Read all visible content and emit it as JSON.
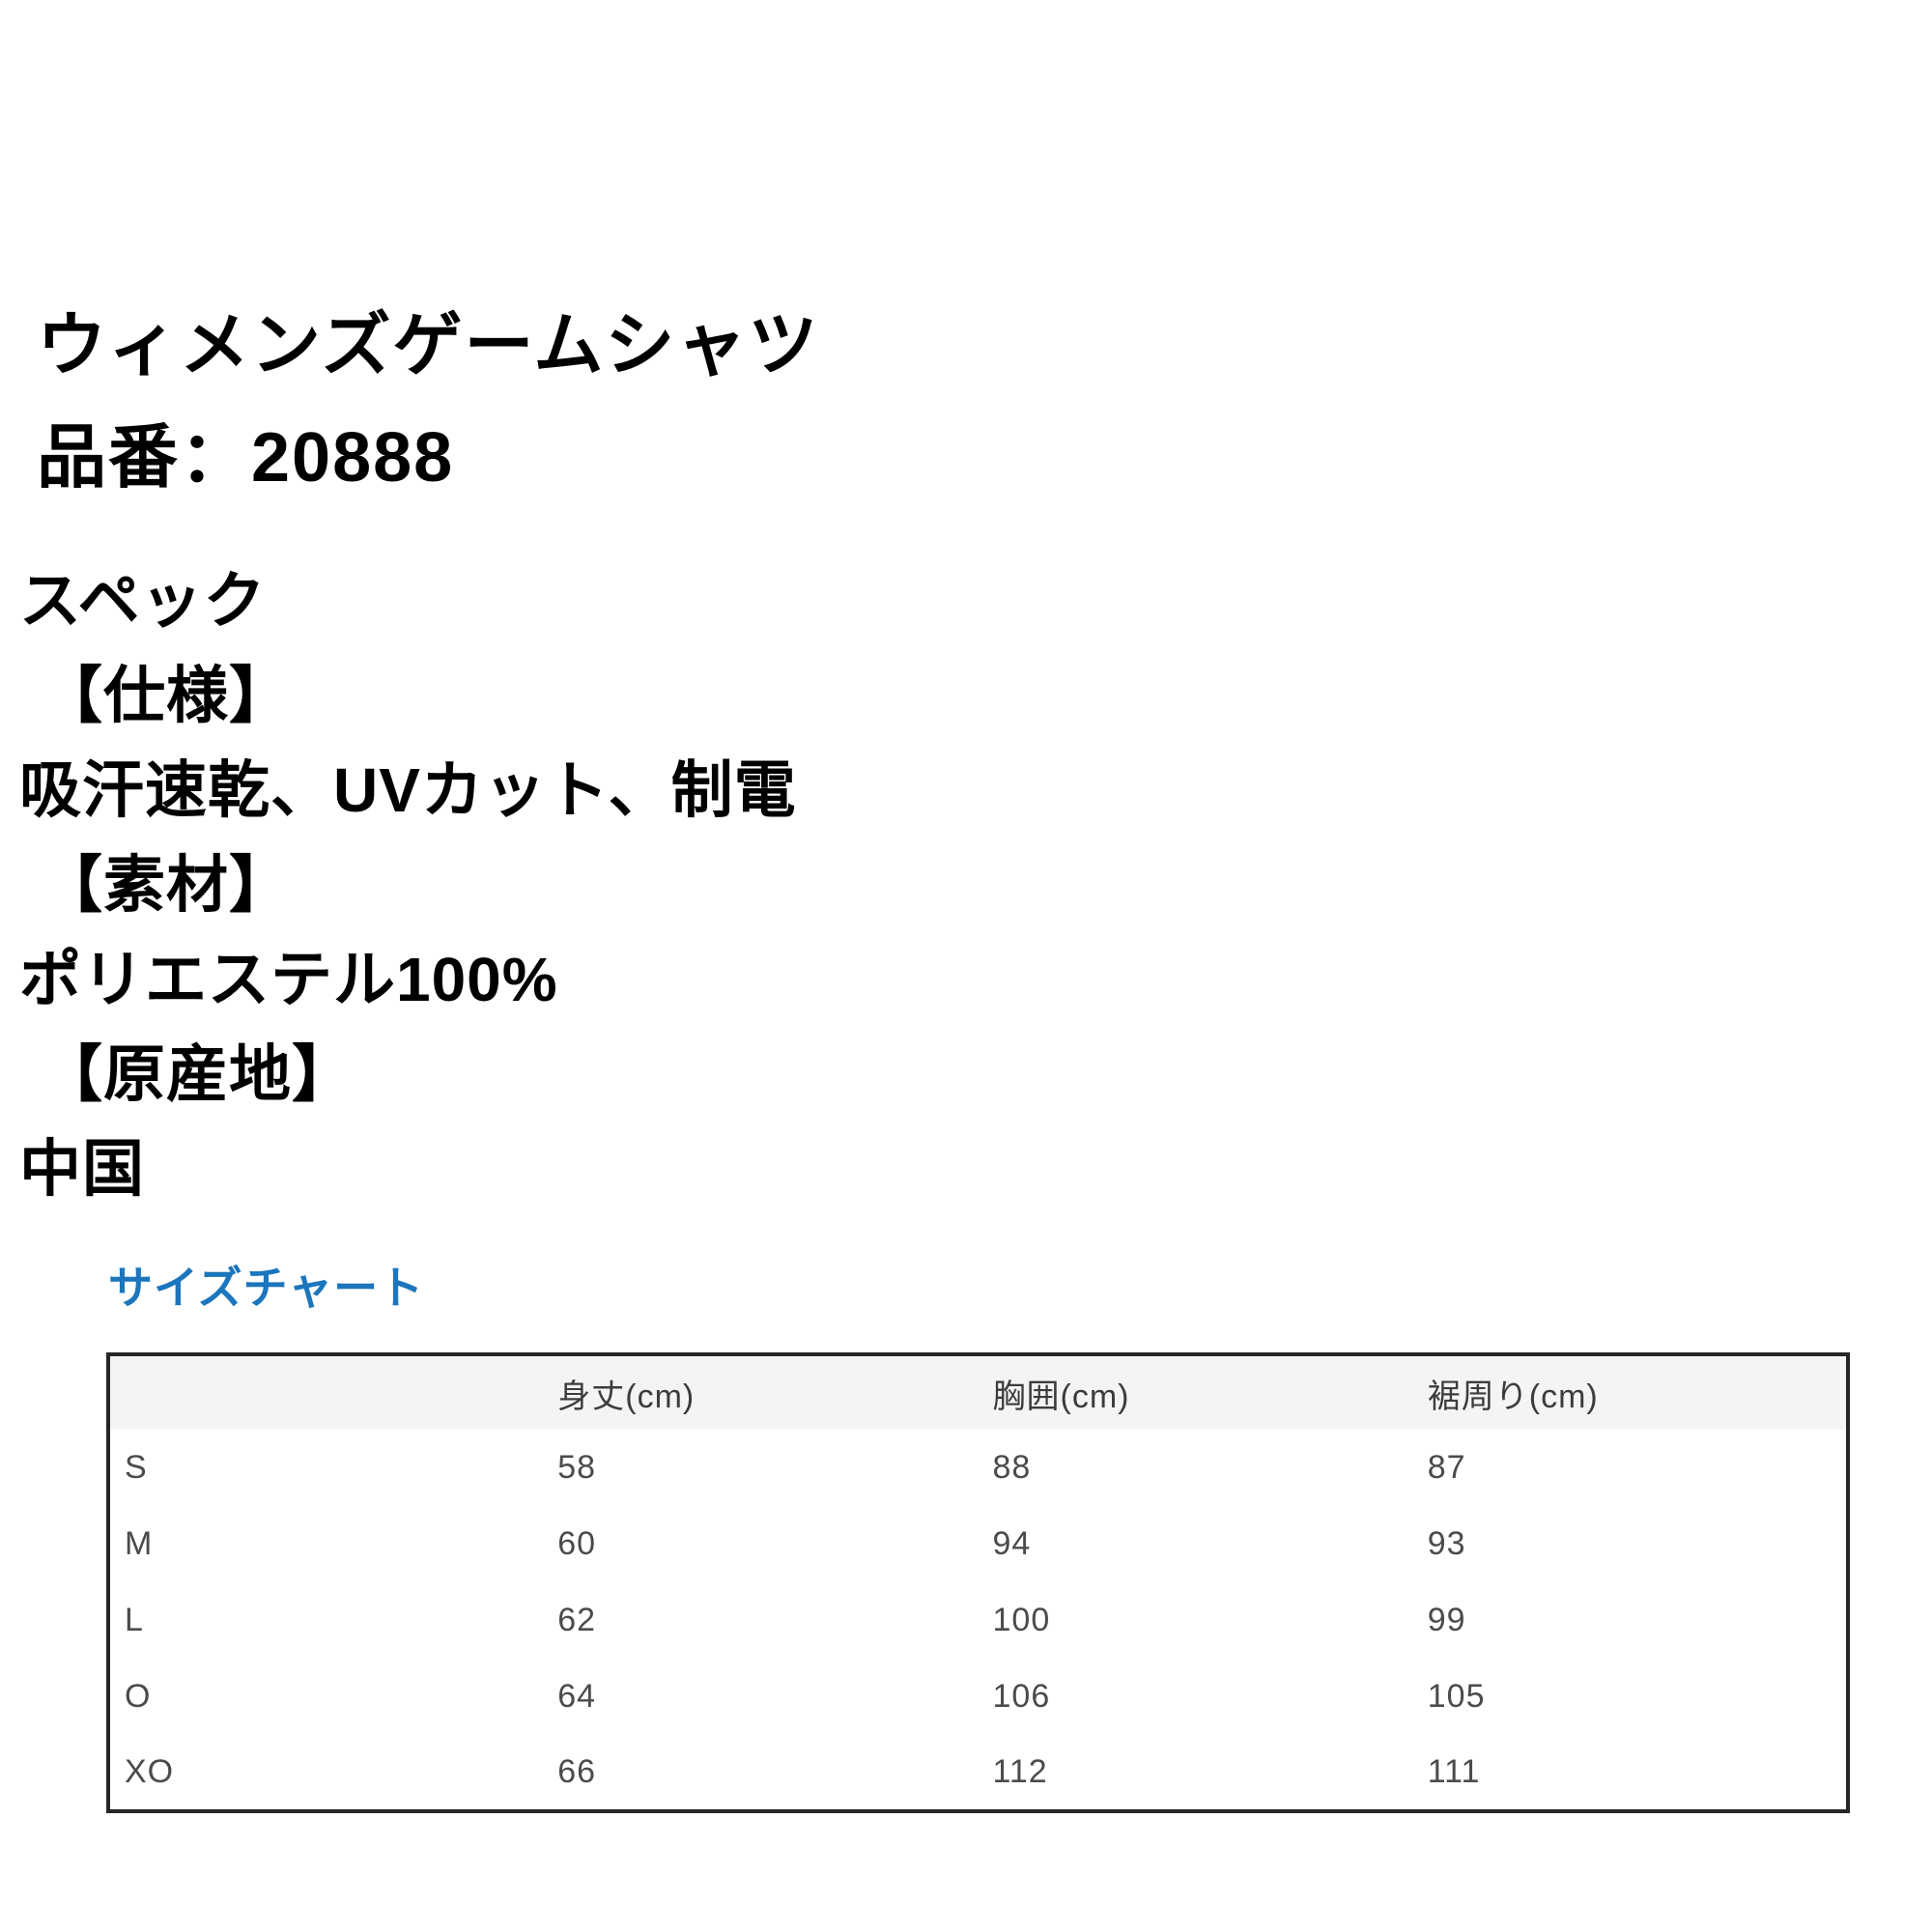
{
  "product": {
    "title": "ウィメンズゲームシャツ",
    "number_line": "品番：20888"
  },
  "spec": {
    "lines": [
      "スペック",
      "【仕様】",
      "吸汗速乾、UVカット、制電",
      "【素材】",
      "ポリエステル100%",
      "【原産地】",
      "中国"
    ]
  },
  "size_chart": {
    "heading": "サイズチャート",
    "heading_color": "#1b76bd",
    "header_bg_color": "#f4f4f4",
    "border_color": "#262626",
    "columns": [
      "",
      "身丈(cm)",
      "胸囲(cm)",
      "裾周り(cm)"
    ],
    "rows": [
      {
        "size": "S",
        "values": [
          "58",
          "88",
          "87"
        ]
      },
      {
        "size": "M",
        "values": [
          "60",
          "94",
          "93"
        ]
      },
      {
        "size": "L",
        "values": [
          "62",
          "100",
          "99"
        ]
      },
      {
        "size": "O",
        "values": [
          "64",
          "106",
          "105"
        ]
      },
      {
        "size": "XO",
        "values": [
          "66",
          "112",
          "111"
        ]
      }
    ]
  }
}
